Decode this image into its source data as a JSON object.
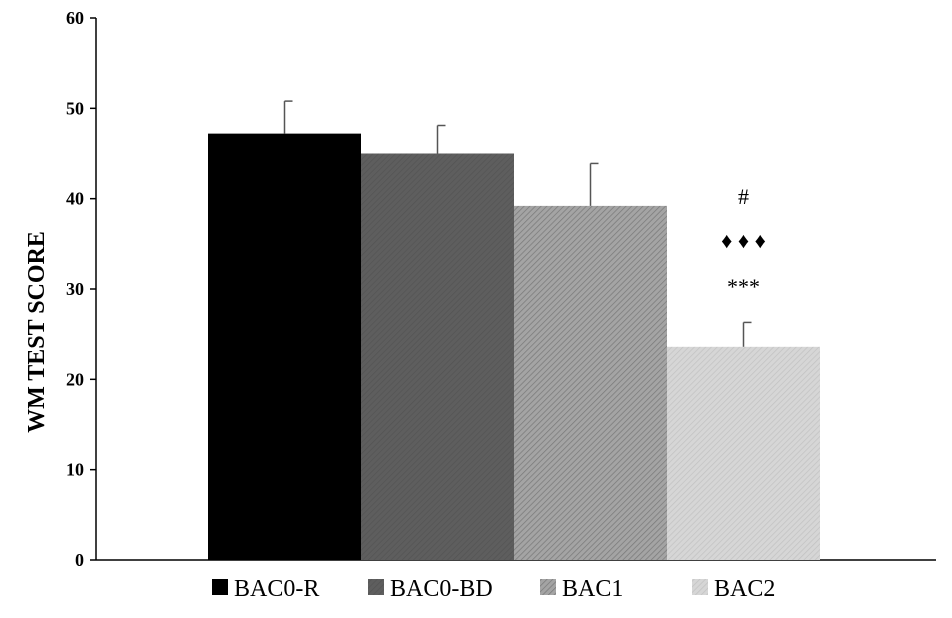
{
  "chart_data": {
    "type": "bar",
    "categories": [
      "BAC0-R",
      "BAC0-BD",
      "BAC1",
      "BAC2"
    ],
    "values": [
      47.2,
      45.0,
      39.2,
      23.6
    ],
    "errors": [
      3.6,
      3.1,
      4.7,
      2.7
    ],
    "colors": [
      "#000000",
      "#5e5e5e",
      "#9a9a9a",
      "#d2d2d2"
    ],
    "ylabel": "WM TEST  SCORE",
    "xlabel": "",
    "ylim": [
      0,
      60
    ],
    "yticks": [
      0,
      10,
      20,
      30,
      40,
      50,
      60
    ],
    "legend": [
      "BAC0-R",
      "BAC0-BD",
      "BAC1",
      "BAC2"
    ],
    "legend_position": "bottom",
    "grid": false,
    "annotations": [
      {
        "category": "BAC2",
        "text": "***"
      },
      {
        "category": "BAC2",
        "text": "♦ ♦ ♦"
      },
      {
        "category": "BAC2",
        "text": "#"
      }
    ]
  }
}
